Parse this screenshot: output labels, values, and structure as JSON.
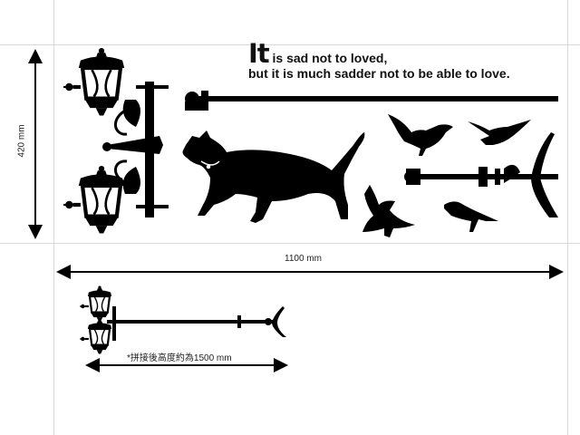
{
  "quote": {
    "initial": "It",
    "line1_rest": " is sad not to loved,",
    "line2": "but it is much sadder not to be able to love."
  },
  "dimensions": {
    "height_label": "420 mm",
    "width_label": "1100 mm",
    "combined_label": "*拼接後高度約為1500 mm"
  },
  "colors": {
    "ink": "#000000",
    "guide": "#d9d9d9"
  },
  "elements": [
    "lamp-icon",
    "cat-icon",
    "bird-icon",
    "lamp-pole-icon"
  ]
}
